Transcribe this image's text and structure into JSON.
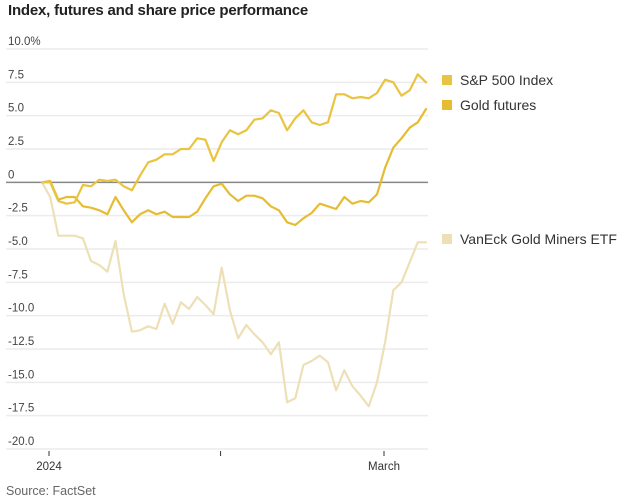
{
  "chart_data": {
    "type": "line",
    "title": "Index, futures and share price performance",
    "xlabel": "",
    "ylabel": "",
    "ylim": [
      -20,
      10
    ],
    "yticks": [
      10,
      7.5,
      5,
      2.5,
      0,
      -2.5,
      -5,
      -7.5,
      -10,
      -12.5,
      -15,
      -17.5,
      -20
    ],
    "ytick_labels": [
      "10.0%",
      "7.5",
      "5.0",
      "2.5",
      "0",
      "-2.5",
      "-5.0",
      "-7.5",
      "-10.0",
      "-12.5",
      "-15.0",
      "-17.5",
      "-20.0"
    ],
    "xticks": [
      {
        "index": 1,
        "label": "2024"
      },
      {
        "index": 22,
        "label": ""
      },
      {
        "index": 42,
        "label": "March"
      }
    ],
    "x_count": 48,
    "grid": true,
    "legend_position": "right",
    "series": [
      {
        "name": "S&P 500 Index",
        "color": "#e9c440",
        "values": [
          0.0,
          0.0,
          -1.4,
          -1.6,
          -1.5,
          -0.2,
          -0.3,
          0.2,
          0.1,
          0.2,
          -0.3,
          -0.6,
          0.5,
          1.5,
          1.7,
          2.1,
          2.1,
          2.5,
          2.5,
          3.3,
          3.2,
          1.6,
          3.0,
          3.9,
          3.6,
          3.9,
          4.7,
          4.8,
          5.4,
          5.2,
          3.9,
          4.8,
          5.4,
          4.5,
          4.3,
          4.5,
          6.6,
          6.6,
          6.3,
          6.4,
          6.3,
          6.7,
          7.7,
          7.5,
          6.5,
          6.9,
          8.1,
          7.5
        ]
      },
      {
        "name": "Gold futures",
        "color": "#e6bc33",
        "values": [
          0.0,
          0.1,
          -1.3,
          -1.1,
          -1.1,
          -1.8,
          -1.9,
          -2.1,
          -2.4,
          -1.1,
          -2.1,
          -3.0,
          -2.4,
          -2.1,
          -2.4,
          -2.2,
          -2.6,
          -2.6,
          -2.6,
          -2.2,
          -1.2,
          -0.3,
          -0.1,
          -0.9,
          -1.4,
          -1.0,
          -1.0,
          -1.2,
          -1.8,
          -2.1,
          -3.0,
          -3.2,
          -2.7,
          -2.3,
          -1.6,
          -1.8,
          -2.0,
          -1.1,
          -1.6,
          -1.4,
          -1.5,
          -0.9,
          1.1,
          2.6,
          3.3,
          4.1,
          4.5,
          5.5
        ]
      },
      {
        "name": "VanEck Gold Miners ETF",
        "color": "#ede0b6",
        "values": [
          0.0,
          -1.1,
          -4.0,
          -4.0,
          -4.0,
          -4.2,
          -5.9,
          -6.2,
          -6.7,
          -4.4,
          -8.4,
          -11.2,
          -11.1,
          -10.8,
          -11.0,
          -9.1,
          -10.6,
          -9.0,
          -9.5,
          -8.6,
          -9.2,
          -9.9,
          -6.4,
          -9.6,
          -11.7,
          -10.7,
          -11.4,
          -12.0,
          -12.9,
          -12.0,
          -16.5,
          -16.2,
          -13.7,
          -13.4,
          -13.0,
          -13.5,
          -15.6,
          -14.1,
          -15.3,
          -16.0,
          -16.8,
          -15.0,
          -12.0,
          -8.1,
          -7.5,
          -6.0,
          -4.5,
          -4.5
        ]
      }
    ]
  },
  "source": "Source: FactSet"
}
